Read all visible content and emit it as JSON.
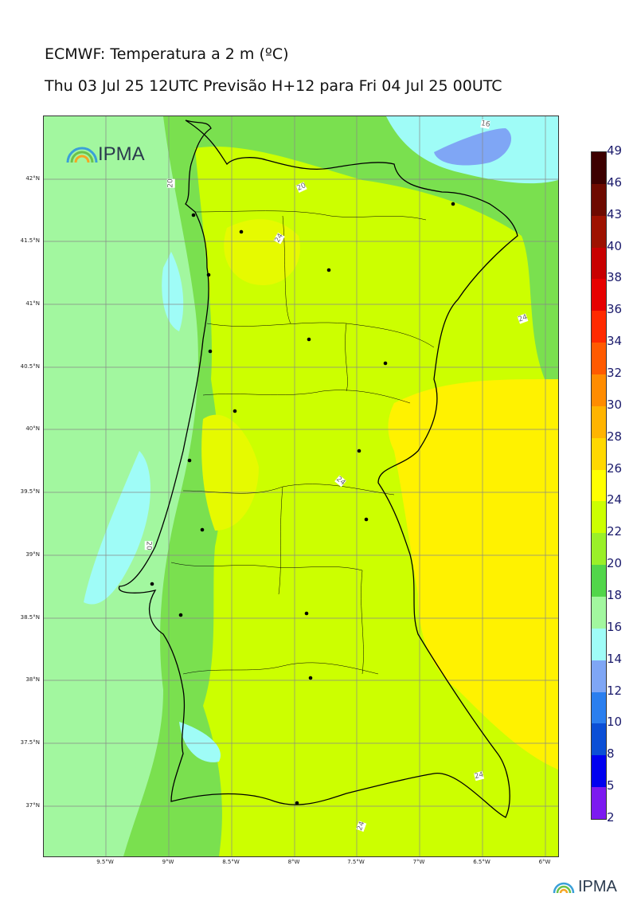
{
  "title": "ECMWF: Temperatura a 2 m (ºC)",
  "subtitle": "Thu 03 Jul 25 12UTC Previsão H+12 para Fri 04 Jul 25 00UTC",
  "logo_text": "IPMA",
  "footer_logo_text": "IPMA",
  "lat_labels": [
    "42°N",
    "41.5°N",
    "41°N",
    "40.5°N",
    "40°N",
    "39.5°N",
    "39°N",
    "38.5°N",
    "38°N",
    "37.5°N",
    "37°N"
  ],
  "lon_labels": [
    "9.5°W",
    "9°W",
    "8.5°W",
    "8°W",
    "7.5°W",
    "7°W",
    "6.5°W",
    "6°W"
  ],
  "contour_labels": [
    "16",
    "20",
    "20",
    "24",
    "24",
    "24",
    "20",
    "24",
    "24"
  ],
  "colorbar": {
    "labels": [
      "49",
      "46",
      "43",
      "40",
      "38",
      "36",
      "34",
      "32",
      "30",
      "28",
      "26",
      "24",
      "22",
      "20",
      "18",
      "16",
      "14",
      "12",
      "10",
      "8",
      "5",
      "2"
    ],
    "colors": [
      "#3d0000",
      "#6e0a00",
      "#9e1200",
      "#c80000",
      "#e60000",
      "#ff2a00",
      "#ff5a00",
      "#ff8c00",
      "#ffb400",
      "#ffd800",
      "#ffff00",
      "#ccff00",
      "#9af028",
      "#52d64a",
      "#a2f79f",
      "#9ffcf7",
      "#7fa6f5",
      "#2b7fef",
      "#0b4fd6",
      "#0000f0",
      "#7c1af0",
      "#dd12f0"
    ]
  },
  "legend_colors": {
    "sea_18_20": "#a2f79f",
    "land_20_22": "#7ae04f",
    "land_22_24": "#ccff00",
    "land_24_26": "#e6fa00",
    "land_26_28": "#fff200",
    "coast_16_18": "#9ffcf7",
    "cold_14_16": "#7fa6f5"
  }
}
